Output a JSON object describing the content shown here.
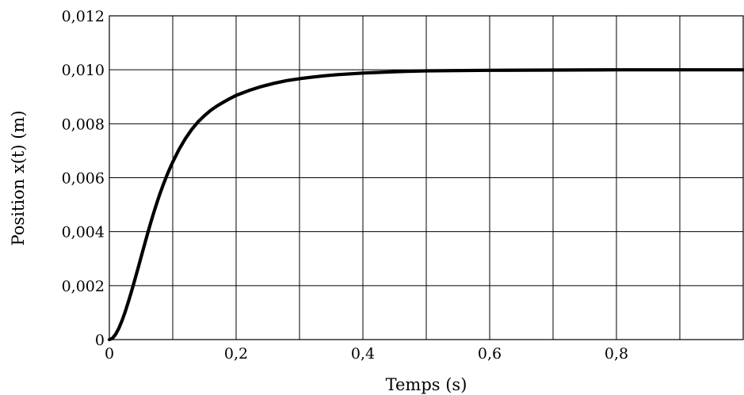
{
  "chart_data": {
    "type": "line",
    "xlabel": "Temps (s)",
    "ylabel": "Position x(t) (m)",
    "xlim": [
      0,
      1
    ],
    "ylim": [
      0,
      0.012
    ],
    "grid": true,
    "legend": "none",
    "x_ticks": [
      {
        "value": 0,
        "label": "0"
      },
      {
        "value": 0.2,
        "label": "0,2"
      },
      {
        "value": 0.4,
        "label": "0,4"
      },
      {
        "value": 0.6,
        "label": "0,6"
      },
      {
        "value": 0.8,
        "label": "0,8"
      }
    ],
    "x_gridlines": [
      0.1,
      0.2,
      0.3,
      0.4,
      0.5,
      0.6,
      0.7,
      0.8,
      0.9
    ],
    "y_ticks": [
      {
        "value": 0,
        "label": "0"
      },
      {
        "value": 0.002,
        "label": "0,002"
      },
      {
        "value": 0.004,
        "label": "0,004"
      },
      {
        "value": 0.006,
        "label": "0,006"
      },
      {
        "value": 0.008,
        "label": "0,008"
      },
      {
        "value": 0.01,
        "label": "0,010"
      },
      {
        "value": 0.012,
        "label": "0,012"
      }
    ],
    "series": [
      {
        "color": "#000000",
        "x": [
          0,
          0.005,
          0.01,
          0.015,
          0.02,
          0.025,
          0.03,
          0.035,
          0.04,
          0.045,
          0.05,
          0.055,
          0.06,
          0.065,
          0.07,
          0.075,
          0.08,
          0.085,
          0.09,
          0.095,
          0.1,
          0.11,
          0.12,
          0.13,
          0.14,
          0.15,
          0.16,
          0.17,
          0.18,
          0.19,
          0.2,
          0.22,
          0.24,
          0.26,
          0.28,
          0.3,
          0.32,
          0.34,
          0.36,
          0.38,
          0.4,
          0.45,
          0.5,
          0.6,
          0.7,
          0.8,
          0.9,
          1.0
        ],
        "y": [
          0,
          5e-05,
          0.0002,
          0.00042,
          0.0007,
          0.00103,
          0.0014,
          0.00179,
          0.0022,
          0.00262,
          0.00305,
          0.00348,
          0.0039,
          0.00431,
          0.0047,
          0.00507,
          0.00542,
          0.00574,
          0.00604,
          0.00632,
          0.00658,
          0.00705,
          0.00745,
          0.00779,
          0.00807,
          0.0083,
          0.0085,
          0.00866,
          0.0088,
          0.00893,
          0.00905,
          0.00923,
          0.00938,
          0.0095,
          0.0096,
          0.00967,
          0.00973,
          0.00978,
          0.00982,
          0.00985,
          0.00988,
          0.00993,
          0.00996,
          0.00998,
          0.00999,
          0.01,
          0.01,
          0.01
        ]
      }
    ]
  }
}
